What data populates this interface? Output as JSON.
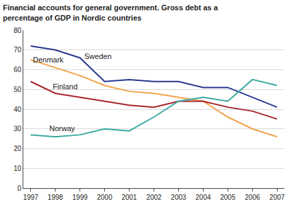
{
  "chart_data": {
    "type": "line",
    "title": [
      "Financial accounts for general government. Gross debt as a",
      "percentage of GDP in Nordic countries"
    ],
    "x": [
      1997,
      1998,
      1999,
      2000,
      2001,
      2002,
      2003,
      2004,
      2005,
      2006,
      2007
    ],
    "series": [
      {
        "name": "Sweden",
        "color": "#27388f",
        "values": [
          72,
          70,
          66,
          54,
          55,
          54,
          54,
          51,
          51,
          46,
          41
        ]
      },
      {
        "name": "Denmark",
        "color": "#f3a24c",
        "values": [
          65,
          61,
          57,
          52,
          49,
          48,
          46,
          44,
          36,
          30,
          26
        ]
      },
      {
        "name": "Finland",
        "color": "#a8232a",
        "values": [
          54,
          48,
          46,
          44,
          42,
          41,
          44,
          44,
          41,
          39,
          35
        ]
      },
      {
        "name": "Norway",
        "color": "#3aaaa2",
        "values": [
          27,
          26,
          27,
          30,
          29,
          36,
          44,
          46,
          44,
          55,
          52
        ]
      }
    ],
    "xlim": [
      1996.7,
      2007.3
    ],
    "xticks": [
      1997,
      1998,
      1999,
      2000,
      2001,
      2002,
      2003,
      2004,
      2005,
      2006,
      2007
    ],
    "ylim": [
      0,
      80
    ],
    "yticks": [
      0,
      10,
      20,
      30,
      40,
      50,
      60,
      70,
      80
    ],
    "grid": true
  }
}
